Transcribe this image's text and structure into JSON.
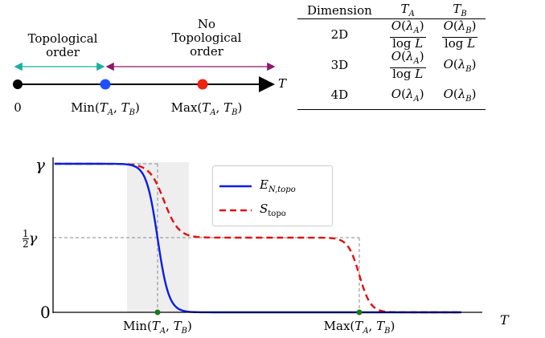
{
  "phase_diagram": {
    "topological_label": "Topological\norder",
    "no_topological_label": "No\nTopological\norder",
    "axis_label": "T",
    "zero_label": "0",
    "min_label": "Min(T_A, T_B)",
    "max_label": "Max(T_A, T_B)",
    "colors": {
      "teal": "#19b0a0",
      "purple": "#8b1a6b",
      "blue": "#1f4fff",
      "red": "#ee2211"
    }
  },
  "table": {
    "headers": [
      "Dimension",
      "T_A",
      "T_B"
    ],
    "rows": [
      {
        "dimension": "2D",
        "t_a": "O(λ_A)/log L",
        "t_b": "O(λ_B)/log L"
      },
      {
        "dimension": "3D",
        "t_a": "O(λ_A)/log L",
        "t_b": "O(λ_B)"
      },
      {
        "dimension": "4D",
        "t_a": "O(λ_A)",
        "t_b": "O(λ_B)"
      }
    ]
  },
  "chart_data": {
    "type": "line",
    "xlabel": "T",
    "y_ticks": [
      "γ",
      "½γ",
      "0"
    ],
    "x_ticks": [
      "Min(T_A, T_B)",
      "Max(T_A, T_B)"
    ],
    "series": [
      {
        "name": "E_N,topo",
        "color": "#0a1ee6",
        "style": "solid",
        "description": "drops from γ to 0 near Min(T_A,T_B)"
      },
      {
        "name": "S_topo",
        "color": "#e01010",
        "style": "dashed",
        "description": "drops from γ to ½γ near Min(T_A,T_B), then to 0 near Max(T_A,T_B)"
      }
    ],
    "shaded_region": "around Min(T_A, T_B)",
    "grid": false
  }
}
